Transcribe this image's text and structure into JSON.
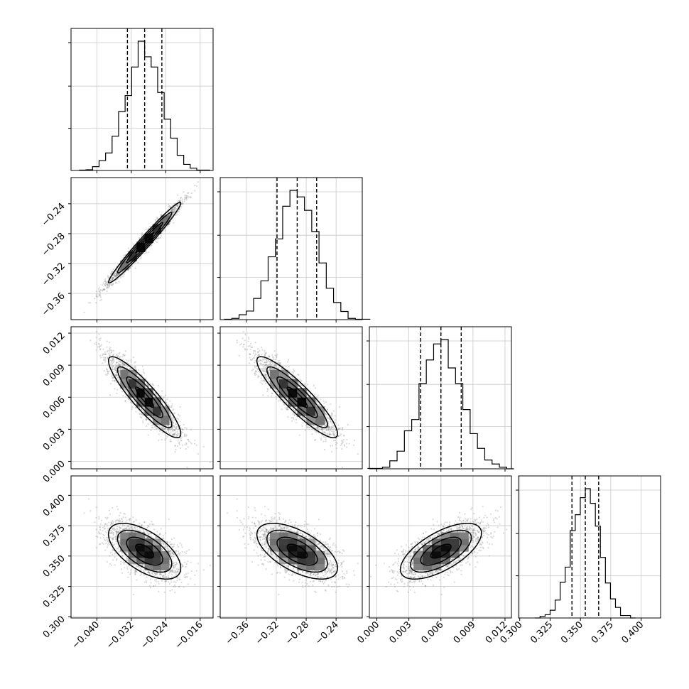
{
  "chart_data": {
    "type": "corner",
    "title": "",
    "grid": true,
    "parameters": [
      {
        "range": [
          -0.046,
          -0.013
        ],
        "ticks": [
          -0.04,
          -0.032,
          -0.024,
          -0.016
        ],
        "tick_labels": [
          "−0.040",
          "−0.032",
          "−0.024",
          "−0.016"
        ],
        "mean": -0.0289,
        "sd": 0.0042,
        "quantiles": [
          -0.0329,
          -0.0289,
          -0.0249
        ]
      },
      {
        "range": [
          -0.395,
          -0.205
        ],
        "ticks": [
          -0.36,
          -0.32,
          -0.28,
          -0.24
        ],
        "tick_labels": [
          "−0.36",
          "−0.32",
          "−0.28",
          "−0.24"
        ],
        "mean": -0.292,
        "sd": 0.027,
        "quantiles": [
          -0.319,
          -0.292,
          -0.266
        ]
      },
      {
        "range": [
          -0.0007,
          0.0126
        ],
        "ticks": [
          0.0,
          0.003,
          0.006,
          0.009,
          0.012
        ],
        "tick_labels": [
          "0.000",
          "0.003",
          "0.006",
          "0.009",
          "0.012"
        ],
        "mean": 0.006,
        "sd": 0.0019,
        "quantiles": [
          0.0041,
          0.006,
          0.0079
        ]
      },
      {
        "range": [
          0.299,
          0.416
        ],
        "ticks": [
          0.3,
          0.325,
          0.35,
          0.375,
          0.4
        ],
        "tick_labels": [
          "0.300",
          "0.325",
          "0.350",
          "0.375",
          "0.400"
        ],
        "mean": 0.354,
        "sd": 0.0115,
        "quantiles": [
          0.343,
          0.354,
          0.365
        ]
      }
    ],
    "correlations": [
      [
        1.0,
        0.98,
        -0.9,
        -0.6
      ],
      [
        0.98,
        1.0,
        -0.9,
        -0.6
      ],
      [
        -0.9,
        -0.9,
        1.0,
        0.65
      ],
      [
        -0.6,
        -0.6,
        0.65,
        1.0
      ]
    ]
  }
}
